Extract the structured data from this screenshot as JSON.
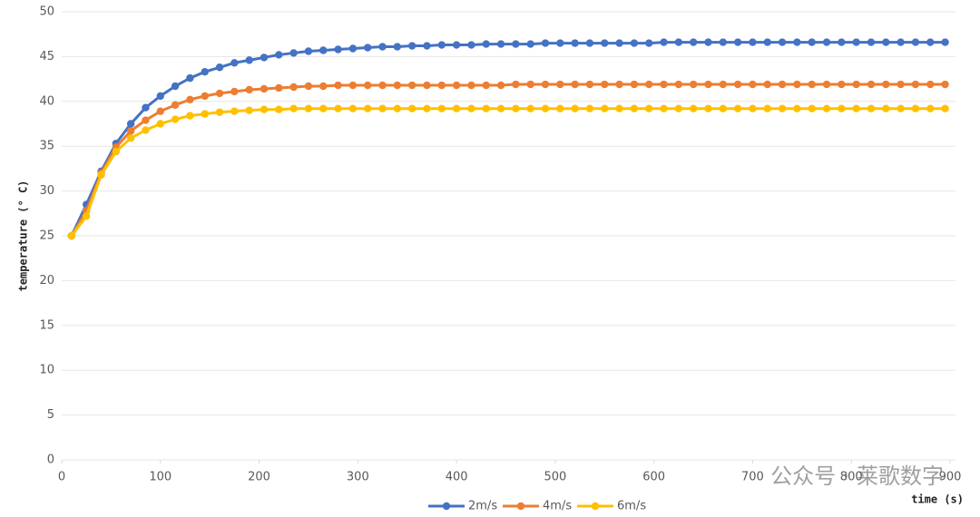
{
  "chart_data": {
    "type": "line",
    "y_label": "temperature (° C)",
    "x_label": "time (s)",
    "watermark": "公众号 · 莱歌数字",
    "x": [
      10,
      25,
      40,
      55,
      70,
      85,
      100,
      115,
      130,
      145,
      160,
      175,
      190,
      205,
      220,
      235,
      250,
      265,
      280,
      295,
      310,
      325,
      340,
      355,
      370,
      385,
      400,
      415,
      430,
      445,
      460,
      475,
      490,
      505,
      520,
      535,
      550,
      565,
      580,
      595,
      610,
      625,
      640,
      655,
      670,
      685,
      700,
      715,
      730,
      745,
      760,
      775,
      790,
      805,
      820,
      835,
      850,
      865,
      880,
      895
    ],
    "series": [
      {
        "name": "2m/s",
        "color": "#4472c4",
        "values": [
          25.0,
          28.5,
          32.2,
          35.3,
          37.5,
          39.3,
          40.6,
          41.7,
          42.6,
          43.3,
          43.8,
          44.3,
          44.6,
          44.9,
          45.2,
          45.4,
          45.6,
          45.7,
          45.8,
          45.9,
          46.0,
          46.1,
          46.1,
          46.2,
          46.2,
          46.3,
          46.3,
          46.3,
          46.4,
          46.4,
          46.4,
          46.4,
          46.5,
          46.5,
          46.5,
          46.5,
          46.5,
          46.5,
          46.5,
          46.5,
          46.6,
          46.6,
          46.6,
          46.6,
          46.6,
          46.6,
          46.6,
          46.6,
          46.6,
          46.6,
          46.6,
          46.6,
          46.6,
          46.6,
          46.6,
          46.6,
          46.6,
          46.6,
          46.6,
          46.6
        ]
      },
      {
        "name": "4m/s",
        "color": "#ed7d31",
        "values": [
          25.0,
          27.8,
          32.0,
          34.9,
          36.7,
          37.9,
          38.9,
          39.6,
          40.2,
          40.6,
          40.9,
          41.1,
          41.3,
          41.4,
          41.5,
          41.6,
          41.7,
          41.7,
          41.8,
          41.8,
          41.8,
          41.8,
          41.8,
          41.8,
          41.8,
          41.8,
          41.8,
          41.8,
          41.8,
          41.8,
          41.9,
          41.9,
          41.9,
          41.9,
          41.9,
          41.9,
          41.9,
          41.9,
          41.9,
          41.9,
          41.9,
          41.9,
          41.9,
          41.9,
          41.9,
          41.9,
          41.9,
          41.9,
          41.9,
          41.9,
          41.9,
          41.9,
          41.9,
          41.9,
          41.9,
          41.9,
          41.9,
          41.9,
          41.9,
          41.9
        ]
      },
      {
        "name": "6m/s",
        "color": "#ffc000",
        "values": [
          25.0,
          27.2,
          31.8,
          34.4,
          35.9,
          36.8,
          37.5,
          38.0,
          38.4,
          38.6,
          38.8,
          38.9,
          39.0,
          39.1,
          39.1,
          39.2,
          39.2,
          39.2,
          39.2,
          39.2,
          39.2,
          39.2,
          39.2,
          39.2,
          39.2,
          39.2,
          39.2,
          39.2,
          39.2,
          39.2,
          39.2,
          39.2,
          39.2,
          39.2,
          39.2,
          39.2,
          39.2,
          39.2,
          39.2,
          39.2,
          39.2,
          39.2,
          39.2,
          39.2,
          39.2,
          39.2,
          39.2,
          39.2,
          39.2,
          39.2,
          39.2,
          39.2,
          39.2,
          39.2,
          39.2,
          39.2,
          39.2,
          39.2,
          39.2,
          39.2
        ]
      }
    ],
    "xlim": [
      0,
      900
    ],
    "xticks": [
      0,
      100,
      200,
      300,
      400,
      500,
      600,
      700,
      800,
      900
    ],
    "ylim": [
      0,
      50
    ],
    "yticks": [
      0,
      5,
      10,
      15,
      20,
      25,
      30,
      35,
      40,
      45,
      50
    ],
    "grid": true
  }
}
